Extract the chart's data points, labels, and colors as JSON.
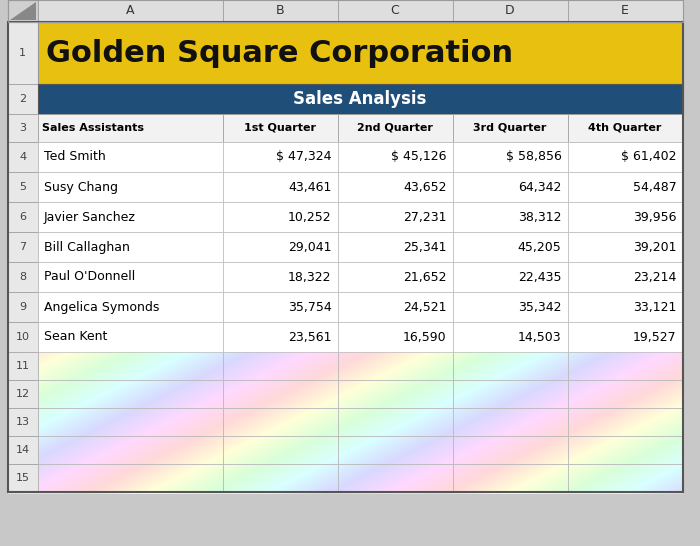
{
  "title": "Golden Square Corporation",
  "subtitle": "Sales Analysis",
  "col_letters": [
    "A",
    "B",
    "C",
    "D",
    "E"
  ],
  "col_headers": [
    "Sales Assistants",
    "1st Quarter",
    "2nd Quarter",
    "3rd Quarter",
    "4th Quarter"
  ],
  "row_numbers": [
    1,
    2,
    3,
    4,
    5,
    6,
    7,
    8,
    9,
    10,
    11,
    12,
    13,
    14,
    15
  ],
  "data_rows": [
    [
      "Ted Smith",
      "$ 47,324",
      "$ 45,126",
      "$ 58,856",
      "$ 61,402"
    ],
    [
      "Susy Chang",
      "43,461",
      "43,652",
      "64,342",
      "54,487"
    ],
    [
      "Javier Sanchez",
      "10,252",
      "27,231",
      "38,312",
      "39,956"
    ],
    [
      "Bill Callaghan",
      "29,041",
      "25,341",
      "45,205",
      "39,201"
    ],
    [
      "Paul O'Donnell",
      "18,322",
      "21,652",
      "22,435",
      "23,214"
    ],
    [
      "Angelica Symonds",
      "35,754",
      "24,521",
      "35,342",
      "33,121"
    ],
    [
      "Sean Kent",
      "23,561",
      "16,590",
      "14,503",
      "19,527"
    ]
  ],
  "title_bg": "#E8C010",
  "title_color": "#111111",
  "subtitle_bg": "#1F4E79",
  "subtitle_color": "#FFFFFF",
  "header_row_bg": "#DEDEDE",
  "header_row_color": "#333333",
  "col_header_bg": "#F2F2F2",
  "col_header_color": "#000000",
  "data_bg": "#FFFFFF",
  "data_color": "#000000",
  "rn_bg": "#E8E8E8",
  "rn_color": "#444444",
  "grid_color": "#BBBBBB",
  "corner_bg": "#D0D0D0",
  "figsize": [
    7.0,
    5.46
  ],
  "dpi": 100
}
